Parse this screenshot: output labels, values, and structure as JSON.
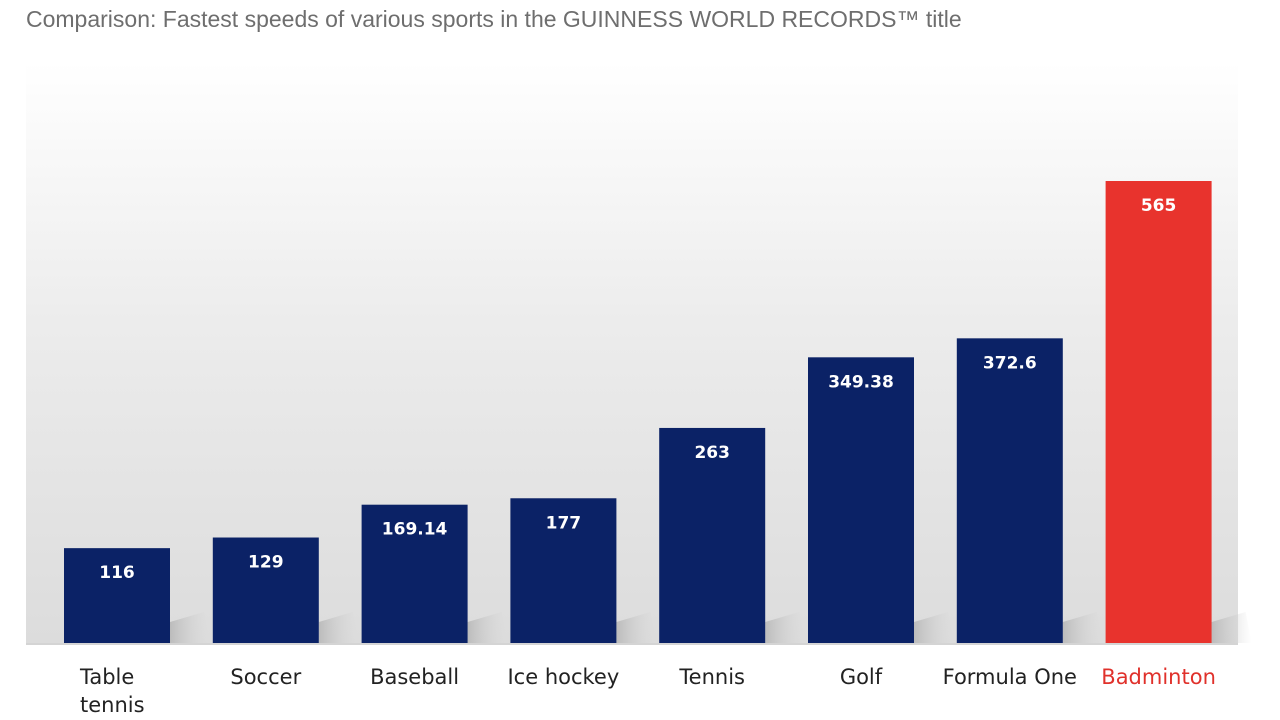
{
  "title": "Comparison: Fastest speeds of various sports in the GUINNESS WORLD RECORDS™ title",
  "colors": {
    "bar": "#0b2266",
    "highlight_bar": "#e8332d",
    "highlight_label": "#e0312b",
    "label": "#222222",
    "title": "#6e6e6e"
  },
  "chart_data": {
    "type": "bar",
    "title": "Comparison: Fastest speeds of various sports in the GUINNESS WORLD RECORDS™ title",
    "xlabel": "",
    "ylabel": "",
    "categories": [
      "Table tennis",
      "Soccer",
      "Baseball",
      "Ice hockey",
      "Tennis",
      "Golf",
      "Formula One",
      "Badminton"
    ],
    "values": [
      116,
      129,
      169.14,
      177,
      263,
      349.38,
      372.6,
      565
    ],
    "value_labels": [
      "116",
      "129",
      "169.14",
      "177",
      "263",
      "349.38",
      "372.6",
      "565"
    ],
    "highlight": "Badminton",
    "ylim": [
      0,
      565
    ],
    "grid": false,
    "legend": "none"
  }
}
